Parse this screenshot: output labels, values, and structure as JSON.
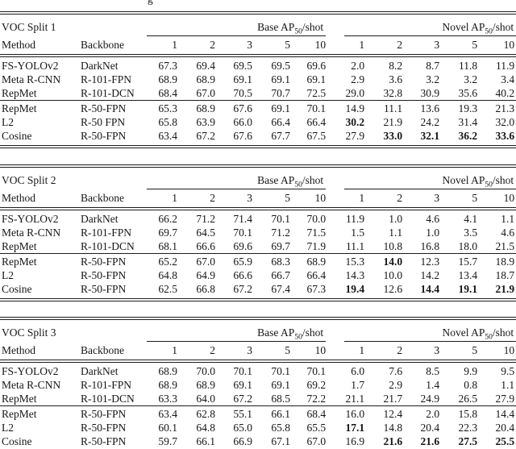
{
  "page": {
    "caption_fragment": "g"
  },
  "tables": [
    {
      "split": "VOC Split 1",
      "base_label": {
        "text": "Base AP",
        "sub": "50",
        "rest": "/shot"
      },
      "novel_label": {
        "text": "Novel AP",
        "sub": "50",
        "rest": "/shot"
      },
      "col_method": "Method",
      "col_backbone": "Backbone",
      "shots": [
        "1",
        "2",
        "3",
        "5",
        "10"
      ],
      "groups": [
        {
          "rows": [
            {
              "method": "FS-YOLOv2",
              "backbone": "DarkNet",
              "base": [
                "67.3",
                "69.4",
                "69.5",
                "69.5",
                "69.6"
              ],
              "novel": [
                "2.0",
                "8.2",
                "8.7",
                "11.8",
                "11.9"
              ],
              "novel_bold": [
                false,
                false,
                false,
                false,
                false
              ]
            },
            {
              "method": "Meta R-CNN",
              "backbone": "R-101-FPN",
              "base": [
                "68.9",
                "68.9",
                "69.1",
                "69.1",
                "69.1"
              ],
              "novel": [
                "2.9",
                "3.6",
                "3.2",
                "3.2",
                "3.4"
              ],
              "novel_bold": [
                false,
                false,
                false,
                false,
                false
              ]
            },
            {
              "method": "RepMet",
              "backbone": "R-101-DCN",
              "base": [
                "68.4",
                "67.0",
                "70.5",
                "70.7",
                "72.5"
              ],
              "novel": [
                "29.0",
                "32.8",
                "30.9",
                "35.6",
                "40.2"
              ],
              "novel_bold": [
                false,
                false,
                false,
                false,
                false
              ]
            }
          ]
        },
        {
          "rows": [
            {
              "method": "RepMet",
              "backbone": "R-50-FPN",
              "base": [
                "65.3",
                "68.9",
                "67.6",
                "69.1",
                "70.1"
              ],
              "novel": [
                "14.9",
                "11.1",
                "13.6",
                "19.3",
                "21.3"
              ],
              "novel_bold": [
                false,
                false,
                false,
                false,
                false
              ]
            },
            {
              "method": "L2",
              "backbone": "R-50 FPN",
              "base": [
                "65.8",
                "63.9",
                "66.0",
                "66.4",
                "66.4"
              ],
              "novel": [
                "30.2",
                "21.9",
                "24.2",
                "31.4",
                "32.0"
              ],
              "novel_bold": [
                true,
                false,
                false,
                false,
                false
              ]
            },
            {
              "method": "Cosine",
              "backbone": "R-50-FPN",
              "base": [
                "63.4",
                "67.2",
                "67.6",
                "67.7",
                "67.5"
              ],
              "novel": [
                "27.9",
                "33.0",
                "32.1",
                "36.2",
                "33.6"
              ],
              "novel_bold": [
                false,
                true,
                true,
                true,
                true
              ]
            }
          ]
        }
      ]
    },
    {
      "split": "VOC Split 2",
      "base_label": {
        "text": "Base AP",
        "sub": "50",
        "rest": "/shot"
      },
      "novel_label": {
        "text": "Novel AP",
        "sub": "50",
        "rest": "/shot"
      },
      "col_method": "Method",
      "col_backbone": "Backbone",
      "shots": [
        "1",
        "2",
        "3",
        "5",
        "10"
      ],
      "groups": [
        {
          "rows": [
            {
              "method": "FS-YOLOv2",
              "backbone": "DarkNet",
              "base": [
                "66.2",
                "71.2",
                "71.4",
                "70.1",
                "70.0"
              ],
              "novel": [
                "11.9",
                "1.0",
                "4.6",
                "4.1",
                "1.1"
              ],
              "novel_bold": [
                false,
                false,
                false,
                false,
                false
              ]
            },
            {
              "method": "Meta R-CNN",
              "backbone": "R-101-FPN",
              "base": [
                "69.7",
                "64.5",
                "70.1",
                "71.2",
                "71.5"
              ],
              "novel": [
                "1.5",
                "1.1",
                "1.0",
                "3.5",
                "4.6"
              ],
              "novel_bold": [
                false,
                false,
                false,
                false,
                false
              ]
            },
            {
              "method": "RepMet",
              "backbone": "R-101-DCN",
              "base": [
                "68.1",
                "66.6",
                "69.6",
                "69.7",
                "71.9"
              ],
              "novel": [
                "11.1",
                "10.8",
                "16.8",
                "18.0",
                "21.5"
              ],
              "novel_bold": [
                false,
                false,
                false,
                false,
                false
              ]
            }
          ]
        },
        {
          "rows": [
            {
              "method": "RepMet",
              "backbone": "R-50-FPN",
              "base": [
                "65.2",
                "67.0",
                "65.9",
                "68.3",
                "68.9"
              ],
              "novel": [
                "15.3",
                "14.0",
                "12.3",
                "15.7",
                "18.9"
              ],
              "novel_bold": [
                false,
                true,
                false,
                false,
                false
              ]
            },
            {
              "method": "L2",
              "backbone": "R-50-FPN",
              "base": [
                "64.8",
                "64.9",
                "66.6",
                "66.7",
                "66.4"
              ],
              "novel": [
                "14.3",
                "10.0",
                "14.2",
                "13.4",
                "18.7"
              ],
              "novel_bold": [
                false,
                false,
                false,
                false,
                false
              ]
            },
            {
              "method": "Cosine",
              "backbone": "R-50-FPN",
              "base": [
                "62.5",
                "66.8",
                "67.2",
                "67.4",
                "67.3"
              ],
              "novel": [
                "19.4",
                "12.6",
                "14.4",
                "19.1",
                "21.9"
              ],
              "novel_bold": [
                true,
                false,
                true,
                true,
                true
              ]
            }
          ]
        }
      ]
    },
    {
      "split": "VOC Split 3",
      "base_label": {
        "text": "Base AP",
        "sub": "50",
        "rest": "/shot"
      },
      "novel_label": {
        "text": "Novel AP",
        "sub": "50",
        "rest": "/shot"
      },
      "col_method": "Method",
      "col_backbone": "Backbone",
      "shots": [
        "1",
        "2",
        "3",
        "5",
        "10"
      ],
      "groups": [
        {
          "rows": [
            {
              "method": "FS-YOLOv2",
              "backbone": "DarkNet",
              "base": [
                "68.9",
                "70.0",
                "70.1",
                "70.1",
                "70.1"
              ],
              "novel": [
                "6.0",
                "7.6",
                "8.5",
                "9.9",
                "9.5"
              ],
              "novel_bold": [
                false,
                false,
                false,
                false,
                false
              ]
            },
            {
              "method": "Meta R-CNN",
              "backbone": "R-101-FPN",
              "base": [
                "68.9",
                "68.9",
                "69.1",
                "69.1",
                "69.2"
              ],
              "novel": [
                "1.7",
                "2.9",
                "1.4",
                "0.8",
                "1.1"
              ],
              "novel_bold": [
                false,
                false,
                false,
                false,
                false
              ]
            },
            {
              "method": "RepMet",
              "backbone": "R-101-DCN",
              "base": [
                "63.3",
                "64.0",
                "67.2",
                "68.5",
                "72.2"
              ],
              "novel": [
                "21.1",
                "21.7",
                "24.9",
                "26.5",
                "27.9"
              ],
              "novel_bold": [
                false,
                false,
                false,
                false,
                false
              ]
            }
          ]
        },
        {
          "rows": [
            {
              "method": "RepMet",
              "backbone": "R-50-FPN",
              "base": [
                "63.4",
                "62.8",
                "55.1",
                "66.1",
                "68.4"
              ],
              "novel": [
                "16.0",
                "12.4",
                "2.0",
                "15.8",
                "14.4"
              ],
              "novel_bold": [
                false,
                false,
                false,
                false,
                false
              ]
            },
            {
              "method": "L2",
              "backbone": "R-50-FPN",
              "base": [
                "60.1",
                "64.8",
                "65.0",
                "65.8",
                "65.5"
              ],
              "novel": [
                "17.1",
                "14.8",
                "20.4",
                "22.3",
                "20.4"
              ],
              "novel_bold": [
                true,
                false,
                false,
                false,
                false
              ]
            },
            {
              "method": "Cosine",
              "backbone": "R-50-FPN",
              "base": [
                "59.7",
                "66.1",
                "66.9",
                "67.1",
                "67.0"
              ],
              "novel": [
                "16.9",
                "21.6",
                "21.6",
                "27.5",
                "25.5"
              ],
              "novel_bold": [
                false,
                true,
                true,
                true,
                true
              ]
            }
          ]
        }
      ]
    }
  ]
}
